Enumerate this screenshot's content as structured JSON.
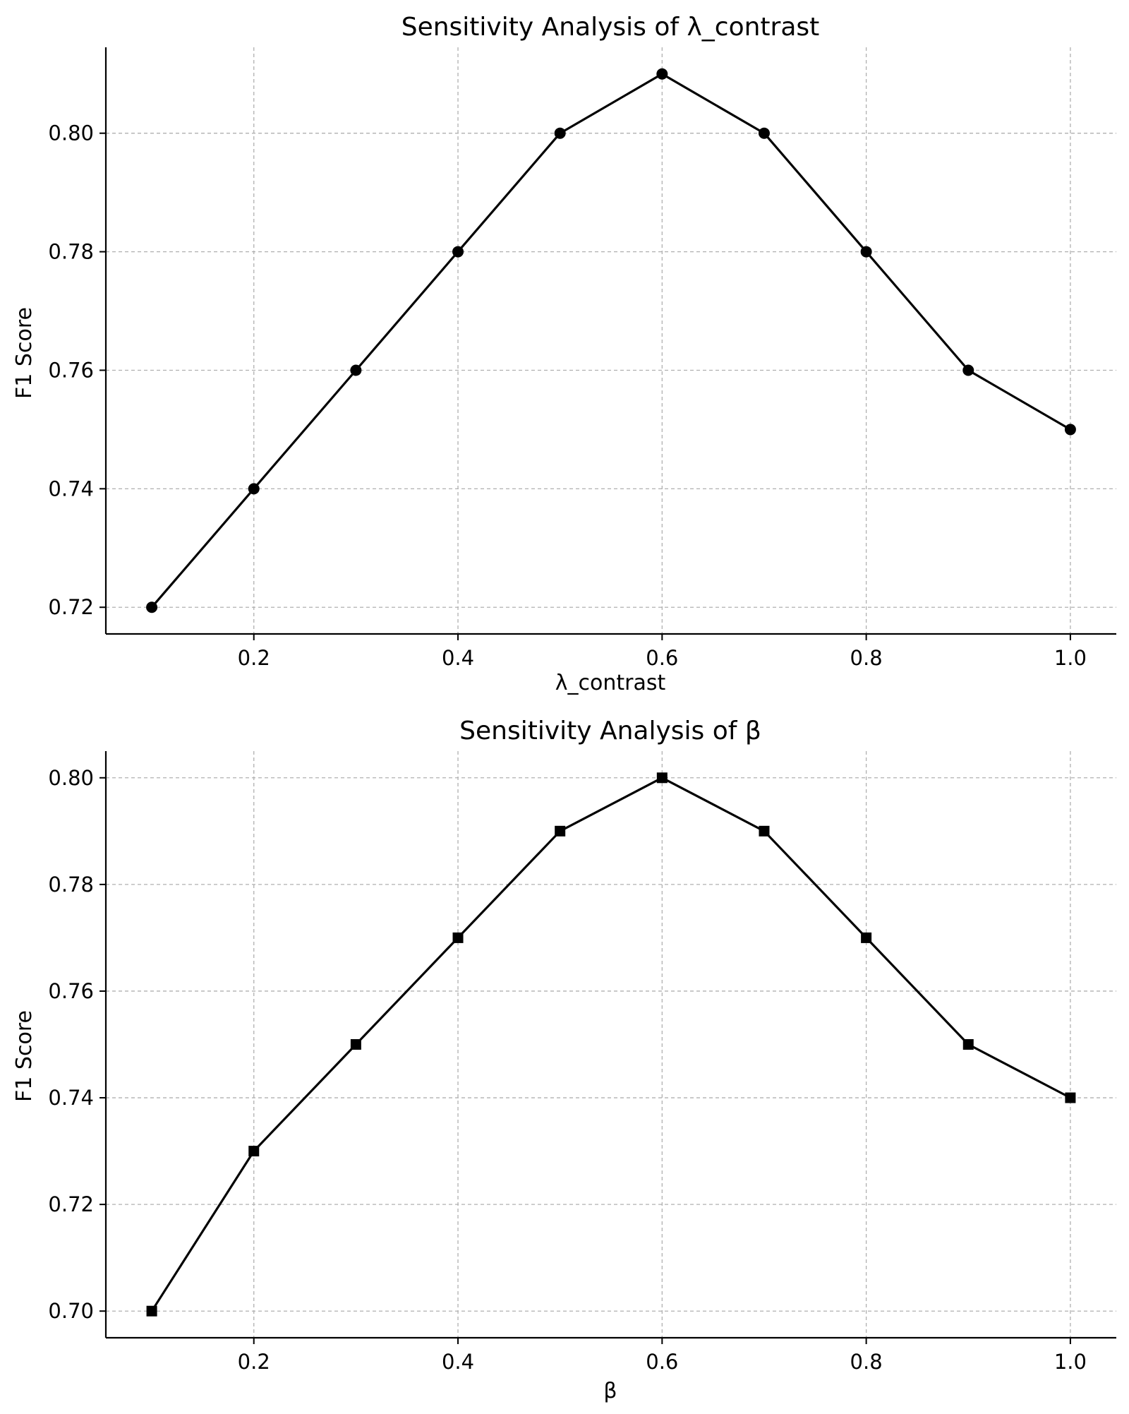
{
  "chart_data": [
    {
      "type": "line",
      "title": "Sensitivity Analysis of λ_contrast",
      "xlabel": "λ_contrast",
      "ylabel": "F1 Score",
      "x": [
        0.1,
        0.2,
        0.3,
        0.4,
        0.5,
        0.6,
        0.7,
        0.8,
        0.9,
        1.0
      ],
      "series": [
        {
          "values": [
            0.72,
            0.74,
            0.76,
            0.78,
            0.8,
            0.81,
            0.8,
            0.78,
            0.76,
            0.75
          ],
          "marker": "circle",
          "color": "#000000"
        }
      ],
      "xlim": [
        0.055,
        1.045
      ],
      "ylim": [
        0.7155,
        0.8145
      ],
      "xticks": [
        0.2,
        0.4,
        0.6,
        0.8,
        1.0
      ],
      "xtick_labels": [
        "0.2",
        "0.4",
        "0.6",
        "0.8",
        "1.0"
      ],
      "yticks": [
        0.72,
        0.74,
        0.76,
        0.78,
        0.8
      ],
      "ytick_labels": [
        "0.72",
        "0.74",
        "0.76",
        "0.78",
        "0.80"
      ],
      "grid": true
    },
    {
      "type": "line",
      "title": "Sensitivity Analysis of β",
      "xlabel": "β",
      "ylabel": "F1 Score",
      "x": [
        0.1,
        0.2,
        0.3,
        0.4,
        0.5,
        0.6,
        0.7,
        0.8,
        0.9,
        1.0
      ],
      "series": [
        {
          "values": [
            0.7,
            0.73,
            0.75,
            0.77,
            0.79,
            0.8,
            0.79,
            0.77,
            0.75,
            0.74
          ],
          "marker": "square",
          "color": "#000000"
        }
      ],
      "xlim": [
        0.055,
        1.045
      ],
      "ylim": [
        0.695,
        0.805
      ],
      "xticks": [
        0.2,
        0.4,
        0.6,
        0.8,
        1.0
      ],
      "xtick_labels": [
        "0.2",
        "0.4",
        "0.6",
        "0.8",
        "1.0"
      ],
      "yticks": [
        0.7,
        0.72,
        0.74,
        0.76,
        0.78,
        0.8
      ],
      "ytick_labels": [
        "0.70",
        "0.72",
        "0.74",
        "0.76",
        "0.78",
        "0.80"
      ],
      "grid": true
    }
  ]
}
